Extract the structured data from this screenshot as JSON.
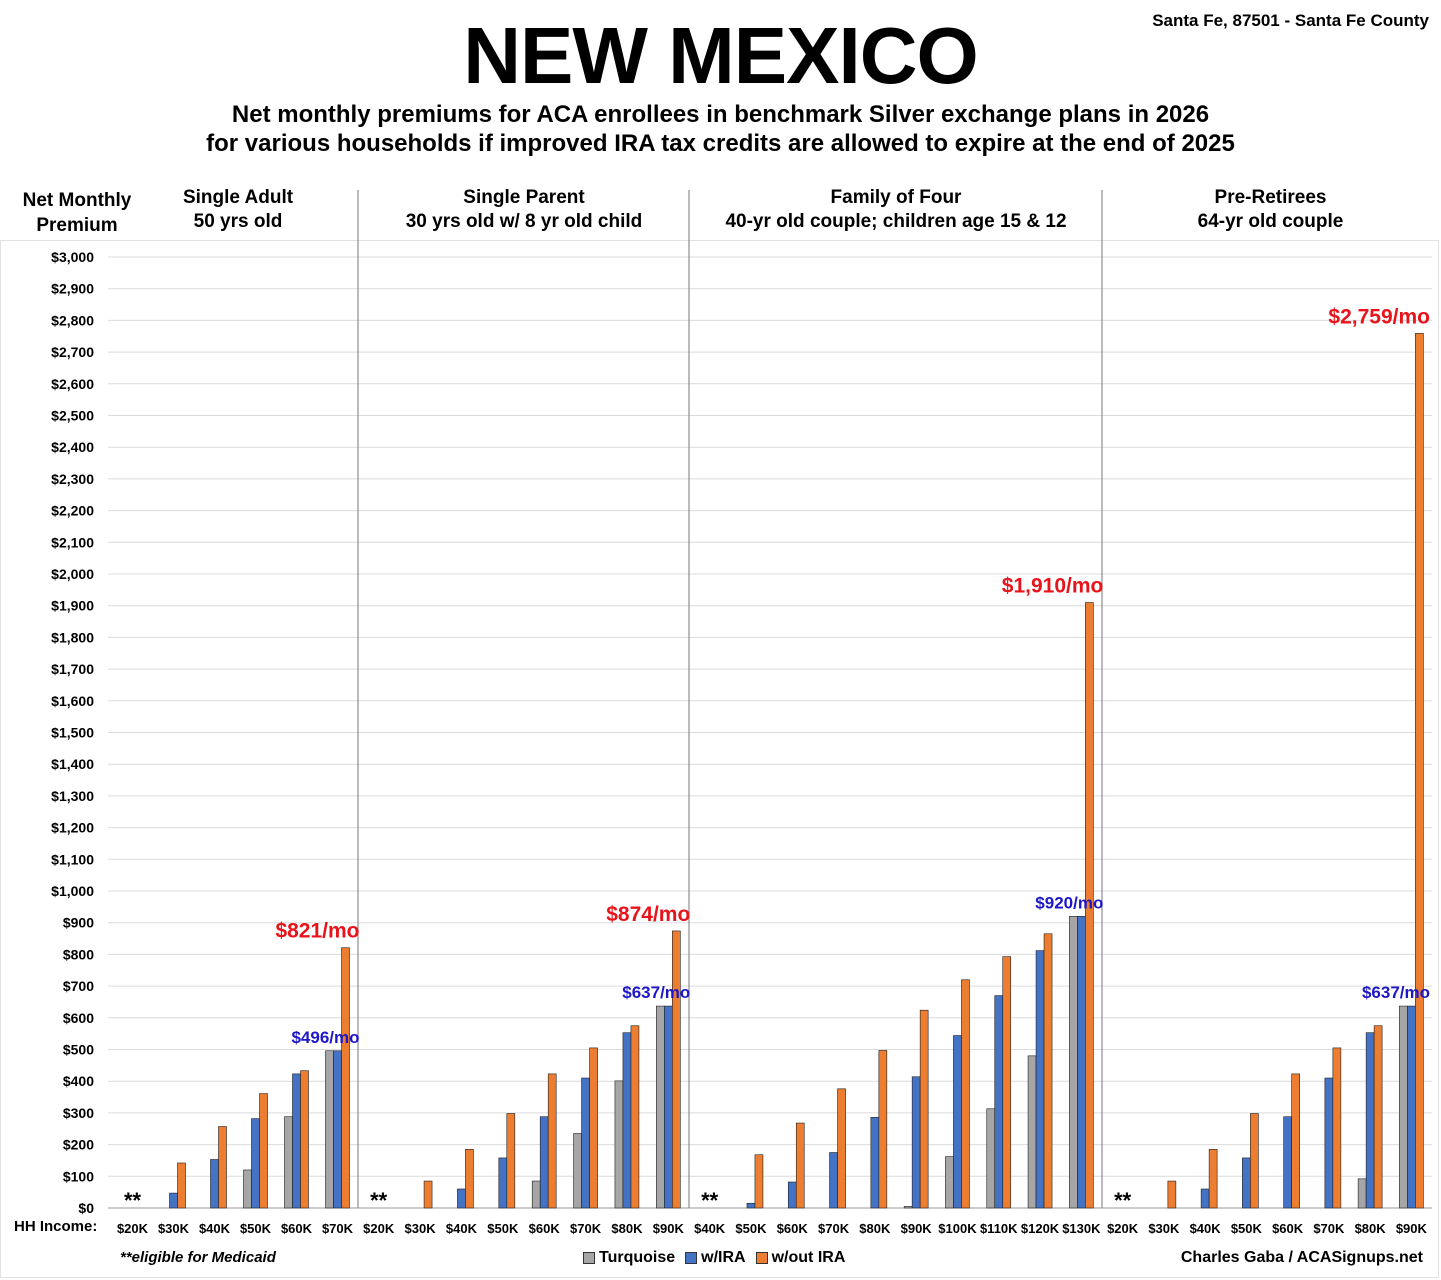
{
  "title": "NEW MEXICO",
  "location": "Santa Fe, 87501 - Santa Fe County",
  "subtitle_line1": "Net monthly premiums for ACA enrollees in benchmark Silver exchange plans in 2026",
  "subtitle_line2": "for various households if improved IRA tax credits are allowed to expire at the end of 2025",
  "y_axis_label": [
    "Net Monthly",
    "Premium"
  ],
  "x_axis_label": "HH Income:",
  "footnote": "**eligible for Medicaid",
  "credit": "Charles Gaba / ACASignups.net",
  "colors": {
    "Turquoise": "#a6a6a6",
    "w/IRA": "#4472c4",
    "w/out IRA": "#ed7d31",
    "callout_red": "#e8141b",
    "callout_blue": "#1d17c7"
  },
  "chart_data": {
    "type": "bar",
    "ylim": [
      0,
      3000
    ],
    "y_ticks": [
      "$0",
      "$100",
      "$200",
      "$300",
      "$400",
      "$500",
      "$600",
      "$700",
      "$800",
      "$900",
      "$1,000",
      "$1,100",
      "$1,200",
      "$1,300",
      "$1,400",
      "$1,500",
      "$1,600",
      "$1,700",
      "$1,800",
      "$1,900",
      "$2,000",
      "$2,100",
      "$2,200",
      "$2,300",
      "$2,400",
      "$2,500",
      "$2,600",
      "$2,700",
      "$2,800",
      "$2,900",
      "$3,000"
    ],
    "grid": true,
    "legend": "bottom-center",
    "series_names": [
      "Turquoise",
      "w/IRA",
      "w/out IRA"
    ],
    "groups": [
      {
        "title_line1": "Single Adult",
        "title_line2": "50 yrs old",
        "medicaid_marker": "**",
        "categories": [
          "$20K",
          "$30K",
          "$40K",
          "$50K",
          "$60K",
          "$70K"
        ],
        "series": [
          {
            "name": "Turquoise",
            "values": [
              0,
              0,
              0,
              120,
              288,
              496
            ]
          },
          {
            "name": "w/IRA",
            "values": [
              0,
              47,
              153,
              282,
              423,
              496
            ]
          },
          {
            "name": "w/out IRA",
            "values": [
              0,
              142,
              257,
              361,
              433,
              821
            ]
          }
        ],
        "callouts": [
          {
            "text": "$821/mo",
            "series": "w/out IRA",
            "index": 5,
            "color": "red"
          },
          {
            "text": "$496/mo",
            "series": "w/IRA",
            "index": 5,
            "color": "blue"
          }
        ]
      },
      {
        "title_line1": "Single Parent",
        "title_line2": "30 yrs old w/ 8 yr old child",
        "medicaid_marker": "**",
        "categories": [
          "$20K",
          "$30K",
          "$40K",
          "$50K",
          "$60K",
          "$70K",
          "$80K",
          "$90K"
        ],
        "series": [
          {
            "name": "Turquoise",
            "values": [
              0,
              0,
              0,
              0,
              85,
              235,
              401,
              637
            ]
          },
          {
            "name": "w/IRA",
            "values": [
              0,
              0,
              60,
              158,
              288,
              410,
              553,
              637
            ]
          },
          {
            "name": "w/out IRA",
            "values": [
              0,
              85,
              185,
              298,
              423,
              505,
              575,
              874
            ]
          }
        ],
        "callouts": [
          {
            "text": "$874/mo",
            "series": "w/out IRA",
            "index": 7,
            "color": "red"
          },
          {
            "text": "$637/mo",
            "series": "w/IRA",
            "index": 7,
            "color": "blue"
          }
        ]
      },
      {
        "title_line1": "Family of Four",
        "title_line2": "40-yr old couple; children age 15 & 12",
        "medicaid_marker": "**",
        "categories": [
          "$40K",
          "$50K",
          "$60K",
          "$70K",
          "$80K",
          "$90K",
          "$100K",
          "$110K",
          "$120K",
          "$130K"
        ],
        "series": [
          {
            "name": "Turquoise",
            "values": [
              0,
              0,
              0,
              0,
              0,
              5,
              162,
              313,
              480,
              920
            ]
          },
          {
            "name": "w/IRA",
            "values": [
              0,
              15,
              82,
              175,
              286,
              414,
              544,
              670,
              812,
              920
            ]
          },
          {
            "name": "w/out IRA",
            "values": [
              0,
              168,
              268,
              376,
              497,
              624,
              720,
              793,
              865,
              1910
            ]
          }
        ],
        "callouts": [
          {
            "text": "$1,910/mo",
            "series": "w/out IRA",
            "index": 9,
            "color": "red"
          },
          {
            "text": "$920/mo",
            "series": "w/IRA",
            "index": 9,
            "color": "blue"
          }
        ]
      },
      {
        "title_line1": "Pre-Retirees",
        "title_line2": "64-yr old couple",
        "medicaid_marker": "**",
        "categories": [
          "$20K",
          "$30K",
          "$40K",
          "$50K",
          "$60K",
          "$70K",
          "$80K",
          "$90K"
        ],
        "series": [
          {
            "name": "Turquoise",
            "values": [
              0,
              0,
              0,
              0,
              0,
              0,
              92,
              637
            ]
          },
          {
            "name": "w/IRA",
            "values": [
              0,
              0,
              60,
              158,
              288,
              410,
              553,
              637
            ]
          },
          {
            "name": "w/out IRA",
            "values": [
              0,
              85,
              185,
              298,
              423,
              505,
              575,
              2759
            ]
          }
        ],
        "callouts": [
          {
            "text": "$2,759/mo",
            "series": "w/out IRA",
            "index": 7,
            "color": "red"
          },
          {
            "text": "$637/mo",
            "series": "w/IRA",
            "index": 7,
            "color": "blue"
          }
        ]
      }
    ]
  }
}
